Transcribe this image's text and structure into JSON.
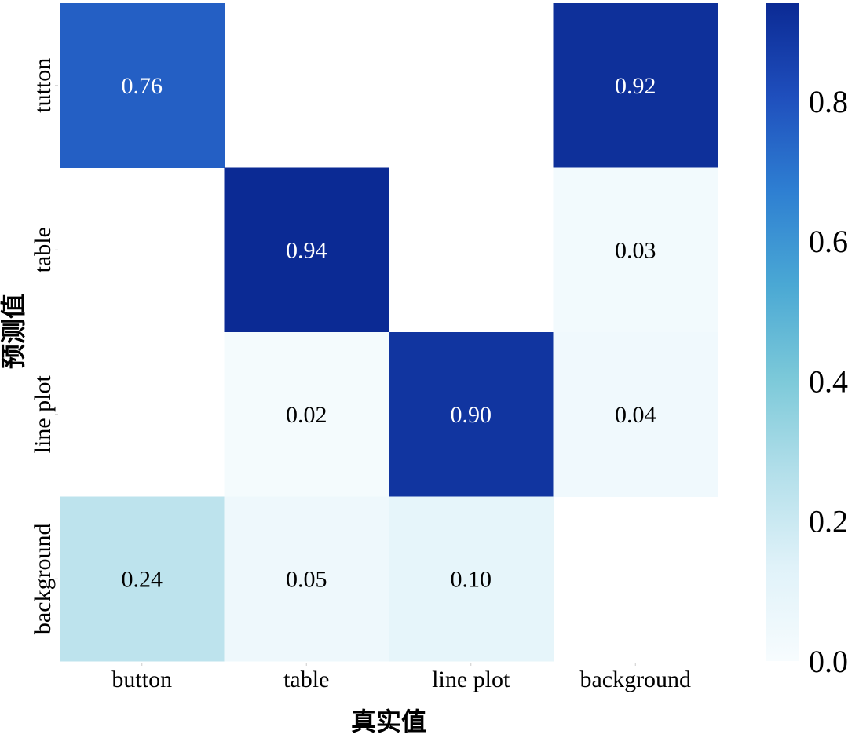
{
  "chart_data": {
    "type": "heatmap",
    "title": "",
    "xlabel": "真实值",
    "ylabel": "预测值",
    "x_categories": [
      "button",
      "table",
      "line plot",
      "background"
    ],
    "y_categories": [
      "tutton",
      "table",
      "line plot",
      "background"
    ],
    "values": [
      [
        0.76,
        null,
        null,
        0.92
      ],
      [
        null,
        0.94,
        null,
        0.03
      ],
      [
        null,
        0.02,
        0.9,
        0.04
      ],
      [
        0.24,
        0.05,
        0.1,
        null
      ]
    ],
    "value_labels": [
      [
        "0.76",
        "",
        "",
        "0.92"
      ],
      [
        "",
        "0.94",
        "",
        "0.03"
      ],
      [
        "",
        "0.02",
        "0.90",
        "0.04"
      ],
      [
        "0.24",
        "0.05",
        "0.10",
        ""
      ]
    ],
    "colorbar": {
      "range": [
        0.0,
        0.94
      ],
      "ticks": [
        0.0,
        0.2,
        0.4,
        0.6,
        0.8
      ],
      "tick_labels": [
        "0.0",
        "0.2",
        "0.4",
        "0.6",
        "0.8"
      ],
      "colors": [
        "#f7fcfe",
        "#e0f2f9",
        "#b3dfea",
        "#7cc9d9",
        "#4aa8d4",
        "#2e7fd2",
        "#1f4fbd",
        "#0b2a94"
      ]
    },
    "colormap": "blues-cyan"
  }
}
